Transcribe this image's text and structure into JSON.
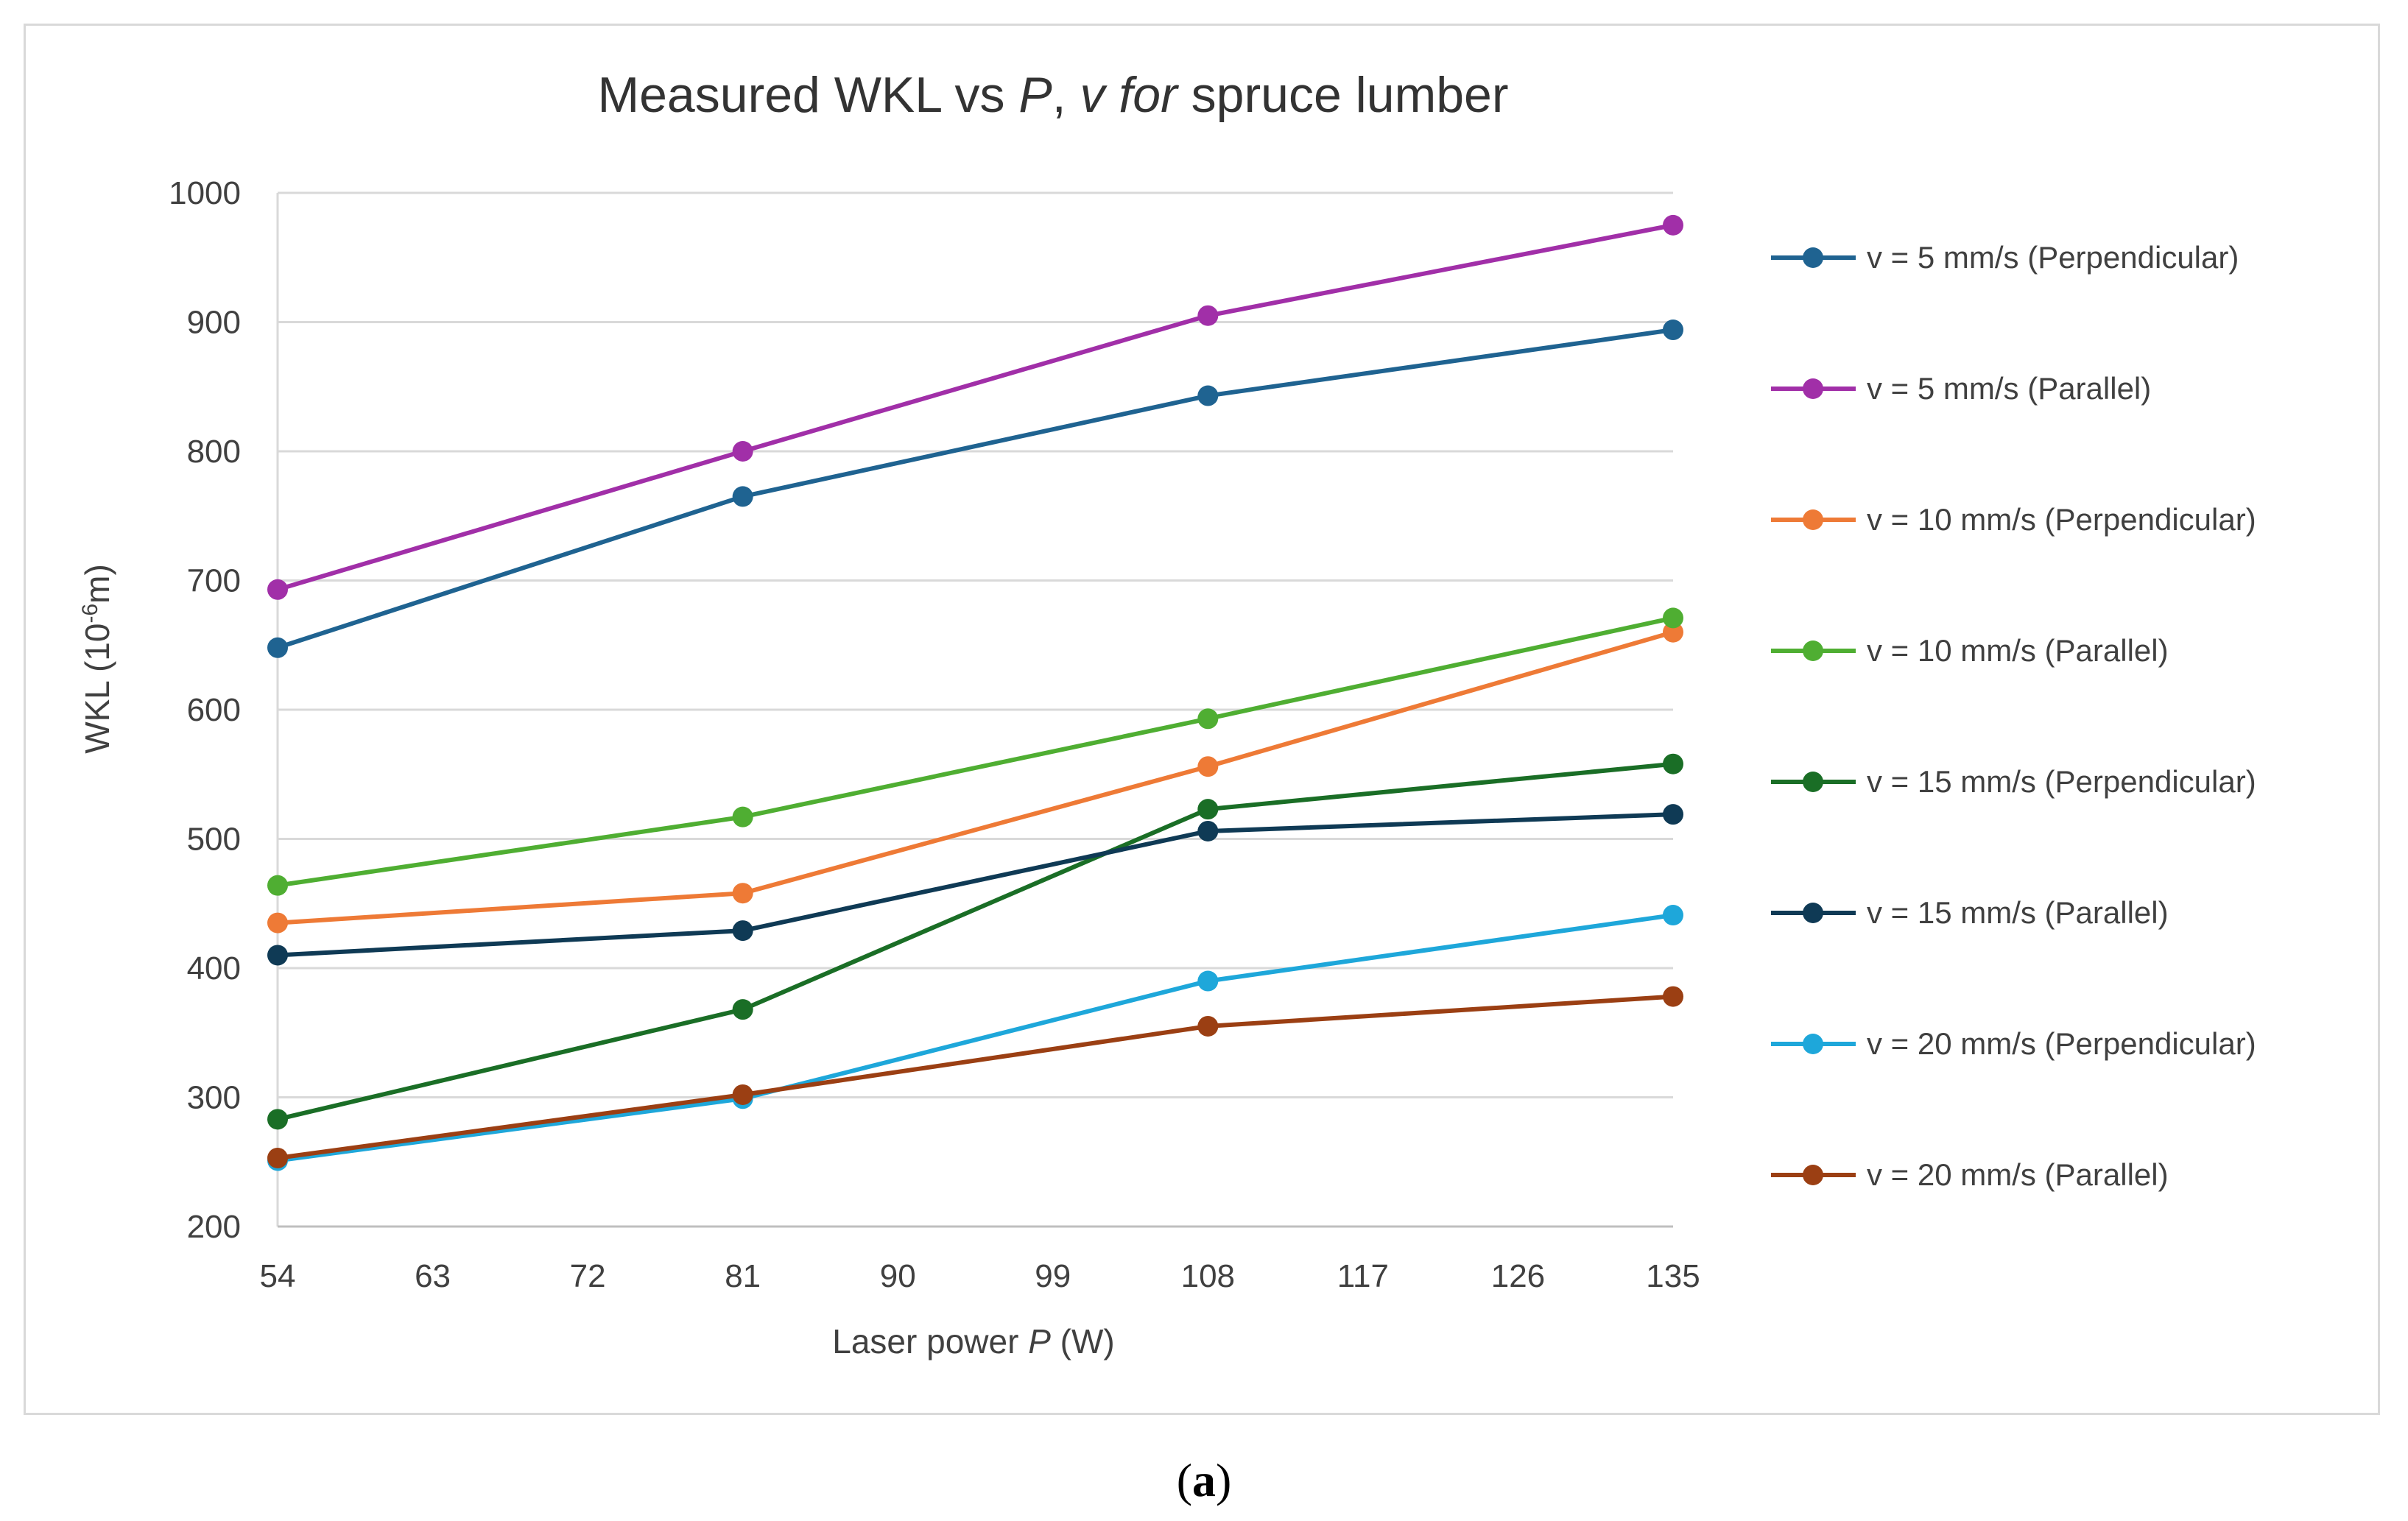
{
  "chart_data": {
    "type": "line",
    "title": {
      "part1": "Measured WKL vs ",
      "part2": "P",
      "part3": ", ",
      "part4": "v for",
      "part5": " spruce lumber"
    },
    "xlabel": {
      "part1": "Laser power ",
      "part2": "P",
      "part3": " (W)"
    },
    "ylabel": {
      "part1": "WKL (10",
      "sup": "-6",
      "part2": "m)"
    },
    "xlim": [
      54,
      135
    ],
    "ylim": [
      200,
      1000
    ],
    "xticks": [
      54,
      63,
      72,
      81,
      90,
      99,
      108,
      117,
      126,
      135
    ],
    "yticks": [
      200,
      300,
      400,
      500,
      600,
      700,
      800,
      900,
      1000
    ],
    "grid": "horizontal",
    "legend_position": "right",
    "x": [
      54,
      81,
      108,
      135
    ],
    "series": [
      {
        "name": "v = 5 mm/s (Perpendicular)",
        "color": "#1f6391",
        "values": [
          648,
          765,
          843,
          894
        ]
      },
      {
        "name": "v = 5 mm/s (Parallel)",
        "color": "#a12fa8",
        "values": [
          693,
          800,
          905,
          975
        ]
      },
      {
        "name": "v = 10 mm/s (Perpendicular)",
        "color": "#ee7a36",
        "values": [
          435,
          458,
          556,
          660
        ]
      },
      {
        "name": "v = 10 mm/s (Parallel)",
        "color": "#4fae32",
        "values": [
          464,
          517,
          593,
          671
        ]
      },
      {
        "name": "v = 15 mm/s (Perpendicular)",
        "color": "#1a6e26",
        "values": [
          283,
          368,
          523,
          558
        ]
      },
      {
        "name": "v = 15 mm/s (Parallel)",
        "color": "#0f3a55",
        "values": [
          410,
          429,
          506,
          519
        ]
      },
      {
        "name": "v = 20 mm/s (Perpendicular)",
        "color": "#1ea7da",
        "values": [
          251,
          299,
          390,
          441
        ]
      },
      {
        "name": "v = 20 mm/s (Parallel)",
        "color": "#9b3f13",
        "values": [
          253,
          302,
          355,
          378
        ]
      }
    ]
  },
  "caption": {
    "open": "(",
    "letter": "a",
    "close": ")"
  }
}
